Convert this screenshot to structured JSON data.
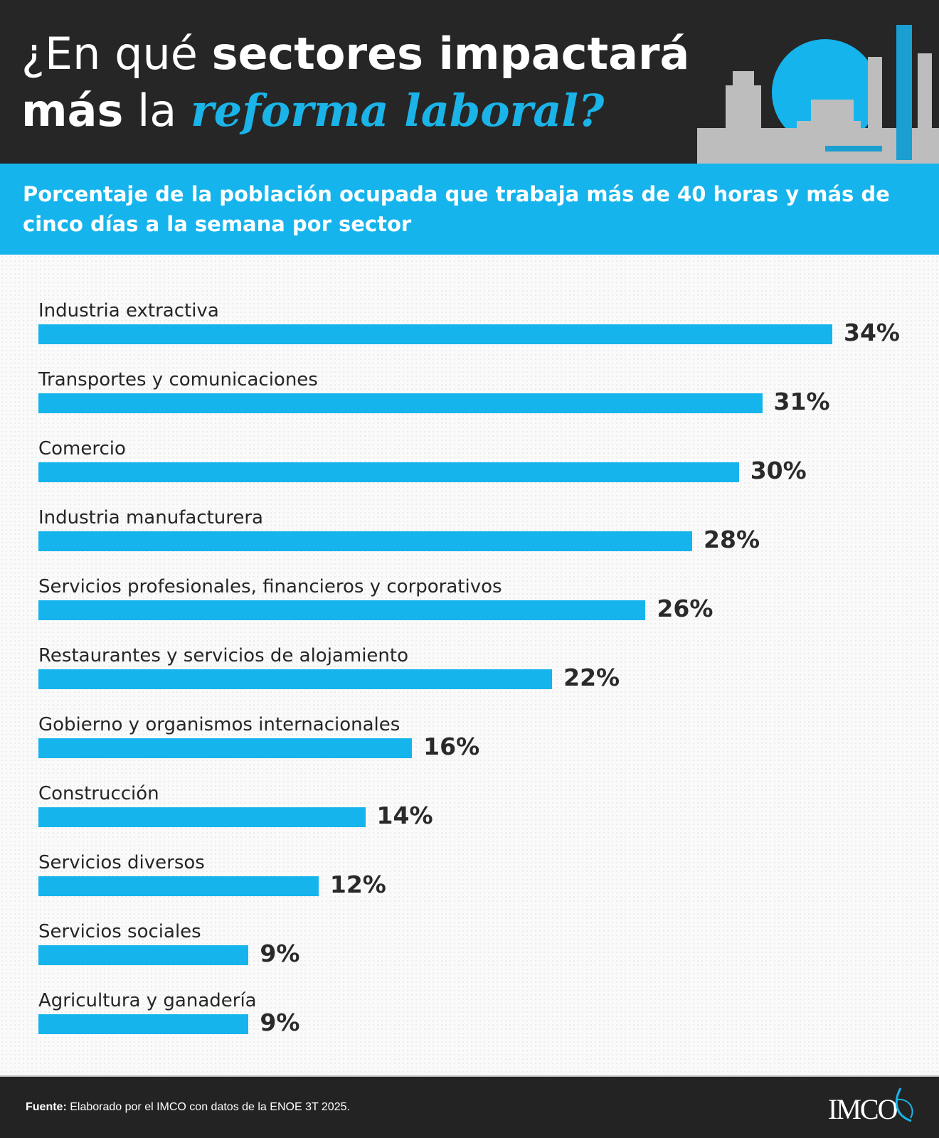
{
  "header": {
    "title_part1": "¿En qué ",
    "title_bold1": "sectores impactará",
    "title_bold2": "más",
    "title_part2": " la ",
    "title_accent": "reforma laboral?"
  },
  "subtitle": "Porcentaje de la población ocupada que trabaja más de 40 horas y más de cinco días a la semana por sector",
  "chart_data": {
    "type": "bar",
    "orientation": "horizontal",
    "categories": [
      "Industria extractiva",
      "Transportes y comunicaciones",
      "Comercio",
      "Industria manufacturera",
      "Servicios profesionales, financieros y corporativos",
      "Restaurantes y servicios de alojamiento",
      "Gobierno y organismos internacionales",
      "Construcción",
      "Servicios diversos",
      "Servicios sociales",
      "Agricultura y ganadería"
    ],
    "values": [
      34,
      31,
      30,
      28,
      26,
      22,
      16,
      14,
      12,
      9,
      9
    ],
    "labels": [
      "34%",
      "31%",
      "30%",
      "28%",
      "26%",
      "22%",
      "16%",
      "14%",
      "12%",
      "9%",
      "9%"
    ],
    "unit": "%",
    "grid": false,
    "bar_color": "#16b4ec"
  },
  "footer": {
    "source_label": "Fuente:",
    "source_text": " Elaborado por el IMCO con datos de la ENOE 3T 2025.",
    "logo": "IMCO"
  },
  "colors": {
    "dark": "#262626",
    "accent": "#16b4ec"
  }
}
